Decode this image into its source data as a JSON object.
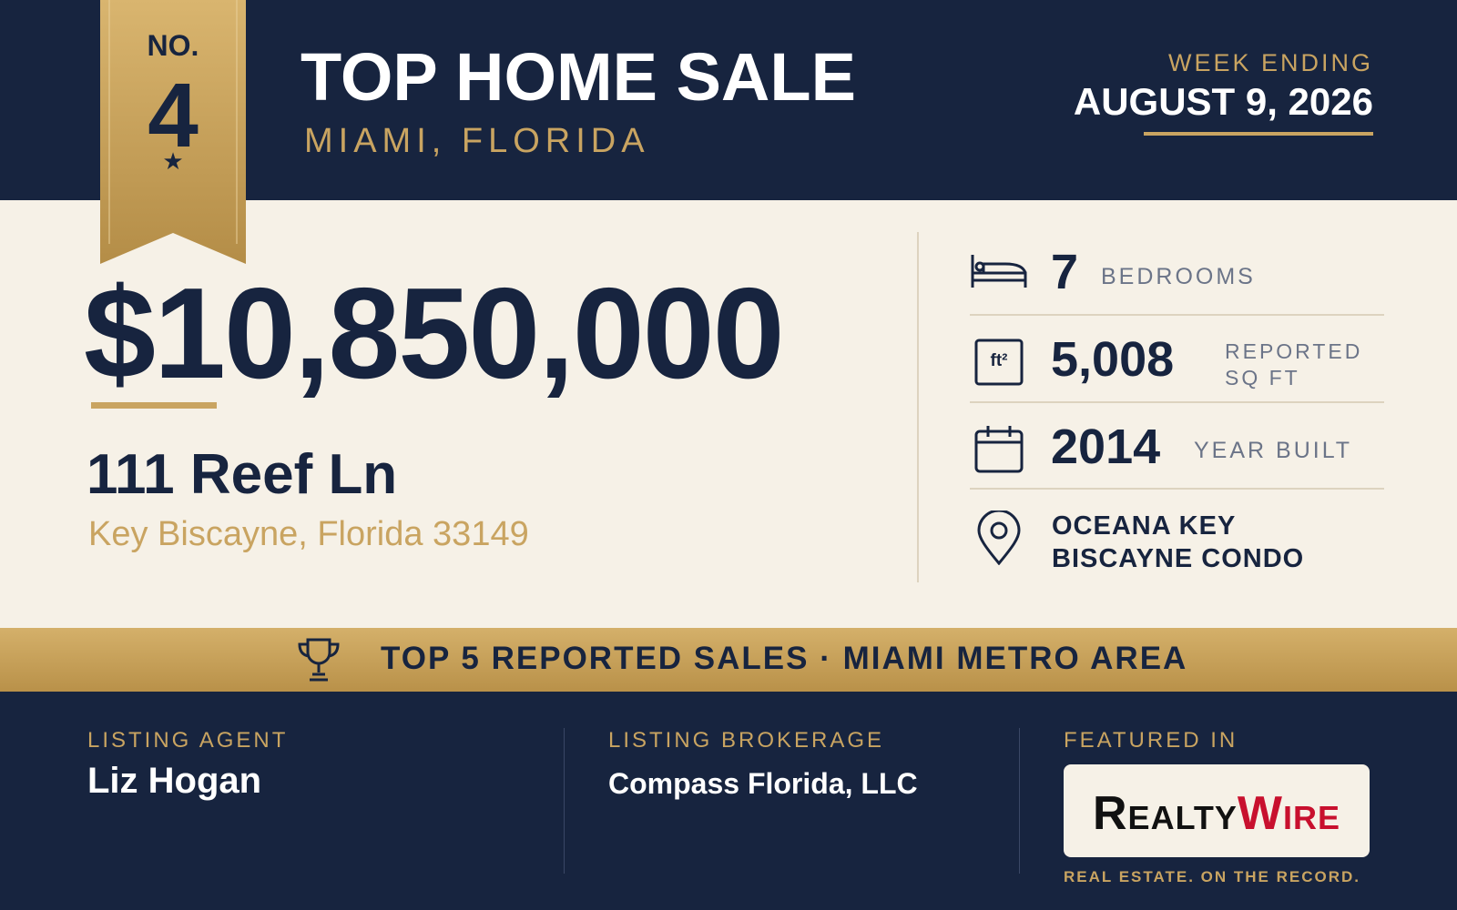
{
  "ribbon": {
    "prefix": "NO.",
    "rank": "4"
  },
  "header": {
    "title": "TOP HOME SALE",
    "location": "MIAMI, FLORIDA",
    "week_label": "WEEK ENDING",
    "week_date": "AUGUST 9, 2026"
  },
  "sale": {
    "price": "$10,850,000",
    "address": "111 Reef Ln",
    "city": "Key Biscayne, Florida 33149"
  },
  "facts": [
    {
      "value": "7",
      "label": "BEDROOMS"
    },
    {
      "icon": "ft²",
      "value": "5,008",
      "label": "REPORTED SQ FT"
    },
    {
      "value": "2014",
      "label": "YEAR BUILT"
    },
    {
      "label": "OCEANA KEY BISCAYNE CONDO"
    }
  ],
  "banner": "TOP 5 REPORTED SALES · MIAMI METRO AREA",
  "footer": {
    "agent_label": "LISTING AGENT",
    "agent": "Liz Hogan",
    "brokerage_label": "LISTING BROKERAGE",
    "brokerage": "Compass Florida, LLC",
    "featured_label": "FEATURED IN",
    "logo_first": "Realty",
    "logo_second": "Wire",
    "tagline": "REAL ESTATE. ON THE RECORD."
  }
}
